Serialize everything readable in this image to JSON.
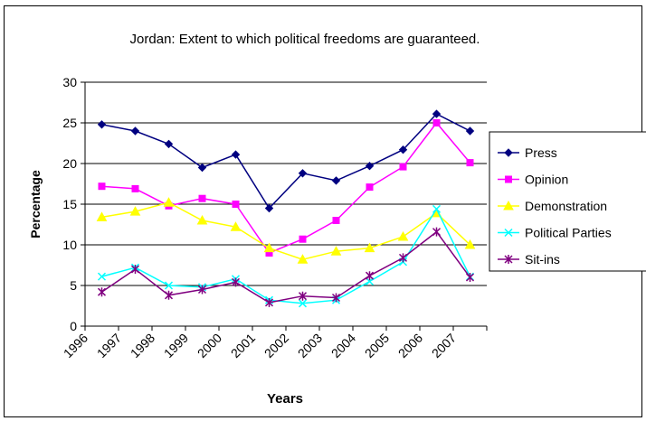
{
  "chart_data": {
    "type": "line",
    "title": "Jordan:  Extent to which political freedoms are guaranteed.",
    "xlabel": "Years",
    "ylabel": "Percentage",
    "ylim": [
      0,
      30
    ],
    "yticks": [
      0,
      5,
      10,
      15,
      20,
      25,
      30
    ],
    "grid": "horizontal",
    "legend": "right",
    "categories": [
      "1996",
      "1997",
      "1998",
      "1999",
      "2000",
      "2001",
      "2002",
      "2003",
      "2004",
      "2005",
      "2006",
      "2007"
    ],
    "series": [
      {
        "name": "Press",
        "color": "#000080",
        "marker": "diamond",
        "values": [
          24.8,
          24.0,
          22.4,
          19.5,
          21.1,
          14.5,
          18.8,
          17.9,
          19.7,
          21.7,
          26.1,
          24.0
        ]
      },
      {
        "name": "Opinion",
        "color": "#FF00FF",
        "marker": "square",
        "values": [
          17.2,
          16.9,
          14.8,
          15.7,
          15.0,
          9.0,
          10.7,
          13.0,
          17.1,
          19.6,
          25.0,
          20.1
        ]
      },
      {
        "name": "Demonstration",
        "color": "#FFFF00",
        "marker": "triangle",
        "values": [
          13.4,
          14.1,
          15.2,
          13.0,
          12.2,
          9.6,
          8.2,
          9.2,
          9.6,
          11.0,
          13.9,
          10.0
        ]
      },
      {
        "name": "Political Parties",
        "color": "#00FFFF",
        "marker": "x",
        "values": [
          6.1,
          7.2,
          5.0,
          4.8,
          5.8,
          3.2,
          2.8,
          3.2,
          5.5,
          7.9,
          14.4,
          6.1
        ]
      },
      {
        "name": "Sit-ins",
        "color": "#800080",
        "marker": "star",
        "values": [
          4.2,
          7.0,
          3.8,
          4.5,
          5.4,
          2.9,
          3.7,
          3.5,
          6.2,
          8.4,
          11.6,
          6.0
        ]
      }
    ]
  }
}
